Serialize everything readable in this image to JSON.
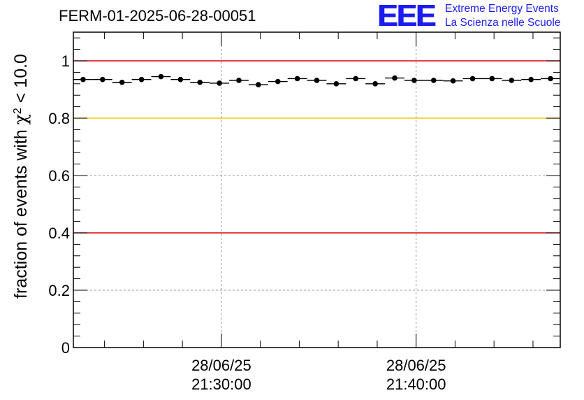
{
  "header": {
    "run_title": "FERM-01-2025-06-28-00051",
    "logo_text": "EEE",
    "logo_line1": "Extreme Energy Events",
    "logo_line2": "La Scienza nelle Scuole"
  },
  "colors": {
    "threshold_red": "#e00000",
    "threshold_yellow": "#ffc000",
    "logo_blue": "#1c1cf0",
    "markers": "#000000",
    "grid": "#999999"
  },
  "chart_data": {
    "type": "scatter",
    "title": "",
    "ylabel_main": "fraction of events with ",
    "ylabel_symbol": "χ",
    "ylabel_sup": "2",
    "ylabel_tail": " < 10.0",
    "xlabel": "",
    "ylim": [
      0,
      1.1
    ],
    "yticks": [
      0,
      0.2,
      0.4,
      0.6,
      0.8,
      1
    ],
    "ytick_labels": [
      "0",
      "0.2",
      "0.4",
      "0.6",
      "0.8",
      "1"
    ],
    "x_unit": "minutes",
    "xlim": [
      -7.6,
      17.4
    ],
    "xticks": [
      {
        "x": 0,
        "date": "28/06/25",
        "time": "21:30:00"
      },
      {
        "x": 10,
        "date": "28/06/25",
        "time": "21:40:00"
      }
    ],
    "grid": true,
    "reference_lines": [
      {
        "y": 1.0,
        "color": "red"
      },
      {
        "y": 0.8,
        "color": "yellow"
      },
      {
        "y": 0.4,
        "color": "red"
      }
    ],
    "series": [
      {
        "x": [
          -7.1,
          -6.1,
          -5.1,
          -4.1,
          -3.1,
          -2.1,
          -1.1,
          -0.1,
          0.9,
          1.9,
          2.9,
          3.9,
          4.9,
          5.9,
          6.9,
          7.9,
          8.9,
          9.9,
          10.9,
          11.9,
          12.9,
          13.9,
          14.9,
          15.9,
          16.9
        ],
        "y": [
          0.935,
          0.935,
          0.925,
          0.935,
          0.945,
          0.935,
          0.925,
          0.922,
          0.932,
          0.917,
          0.928,
          0.938,
          0.932,
          0.92,
          0.938,
          0.92,
          0.94,
          0.932,
          0.932,
          0.93,
          0.938,
          0.938,
          0.932,
          0.935,
          0.938
        ],
        "xerr": 0.5
      }
    ]
  }
}
